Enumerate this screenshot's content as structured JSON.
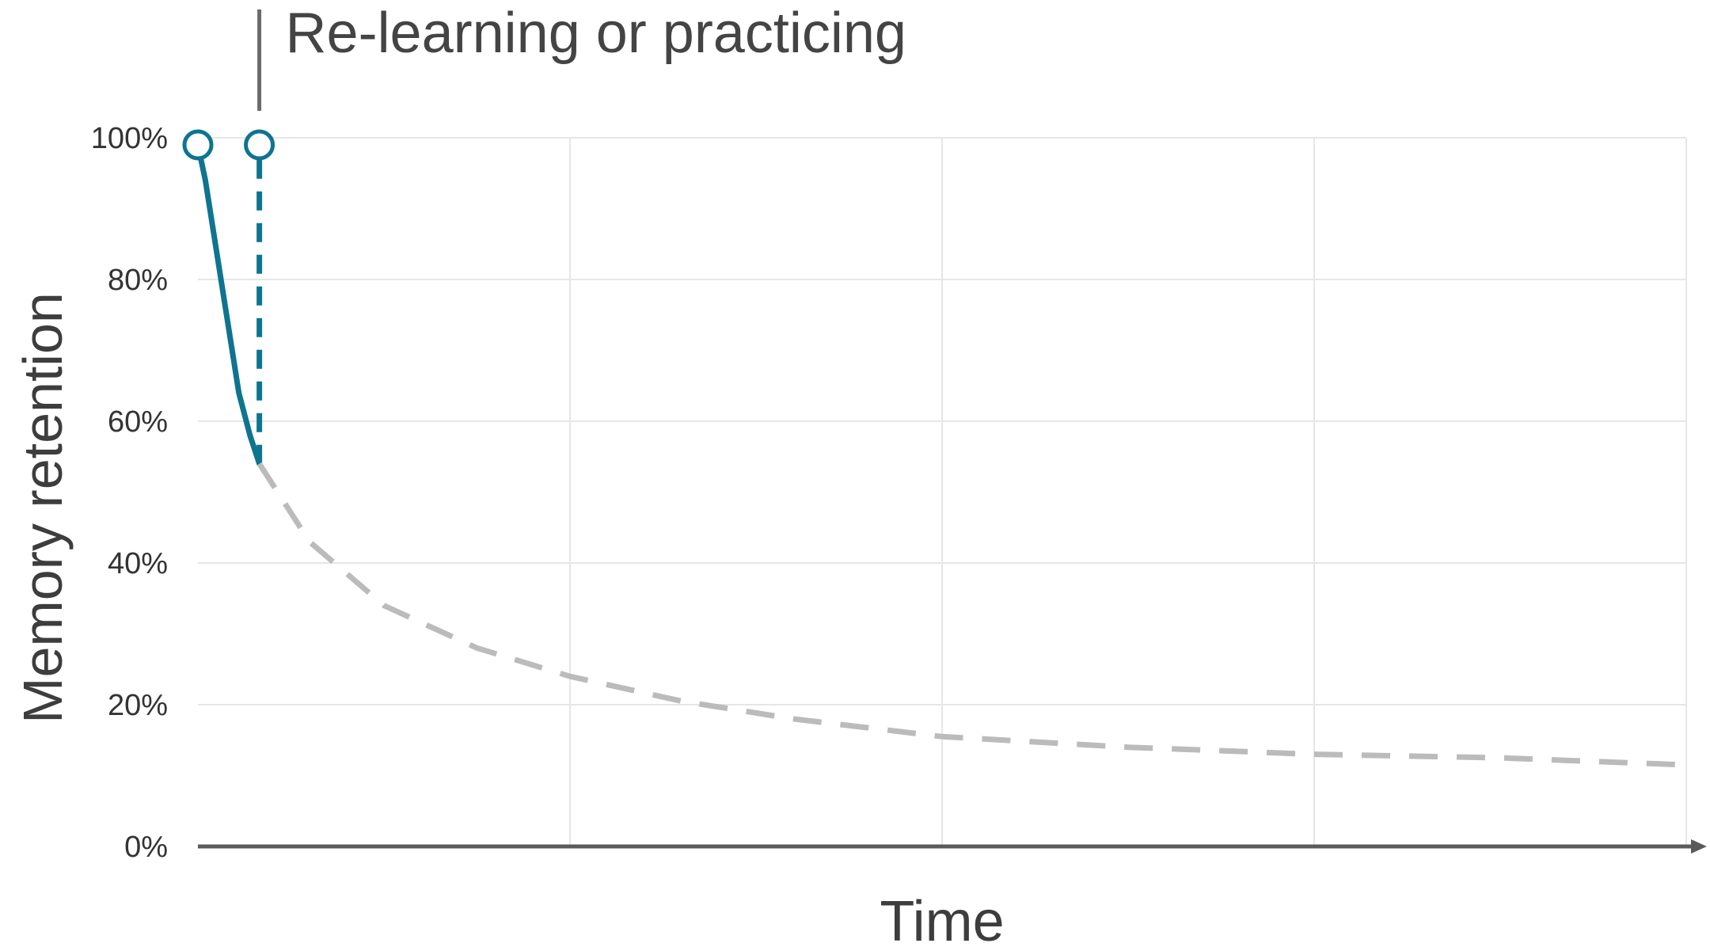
{
  "chart_data": {
    "type": "line",
    "title": "",
    "xlabel": "Time",
    "ylabel": "Memory retention",
    "y_tick_labels": [
      "0%",
      "20%",
      "40%",
      "60%",
      "80%",
      "100%"
    ],
    "y_ticks": [
      0,
      20,
      40,
      60,
      80,
      100
    ],
    "ylim": [
      0,
      100
    ],
    "xlim": [
      0,
      4
    ],
    "x_gridlines": [
      1,
      2,
      3,
      4
    ],
    "grid": true,
    "annotation": {
      "text": "Re-learning or practicing",
      "x": 0.165
    },
    "series": [
      {
        "style": "solid",
        "color": "#0e7490",
        "points": [
          [
            0,
            99
          ],
          [
            0.02,
            94
          ],
          [
            0.05,
            84
          ],
          [
            0.08,
            74
          ],
          [
            0.11,
            64
          ],
          [
            0.14,
            58
          ],
          [
            0.165,
            54
          ]
        ]
      },
      {
        "style": "dashed",
        "color": "#0e7490",
        "points": [
          [
            0.165,
            54
          ],
          [
            0.165,
            99
          ]
        ]
      },
      {
        "style": "dashed",
        "color": "#bbbbbb",
        "points": [
          [
            0.165,
            54
          ],
          [
            0.3,
            43
          ],
          [
            0.5,
            34
          ],
          [
            0.75,
            28
          ],
          [
            1.0,
            24
          ],
          [
            1.3,
            20.5
          ],
          [
            1.6,
            18
          ],
          [
            2.0,
            15.5
          ],
          [
            2.5,
            14
          ],
          [
            3.0,
            13
          ],
          [
            3.5,
            12.5
          ],
          [
            4.0,
            11.5
          ]
        ]
      }
    ],
    "markers": [
      {
        "x": 0,
        "y": 99,
        "color": "#0e7490"
      },
      {
        "x": 0.165,
        "y": 99,
        "color": "#0e7490"
      }
    ],
    "colors": {
      "primary": "#0e7490",
      "forgetting": "#bbbbbb",
      "axis": "#5a5a5a",
      "grid": "#e6e6e6",
      "annotation_line": "#6b6b6b"
    }
  }
}
